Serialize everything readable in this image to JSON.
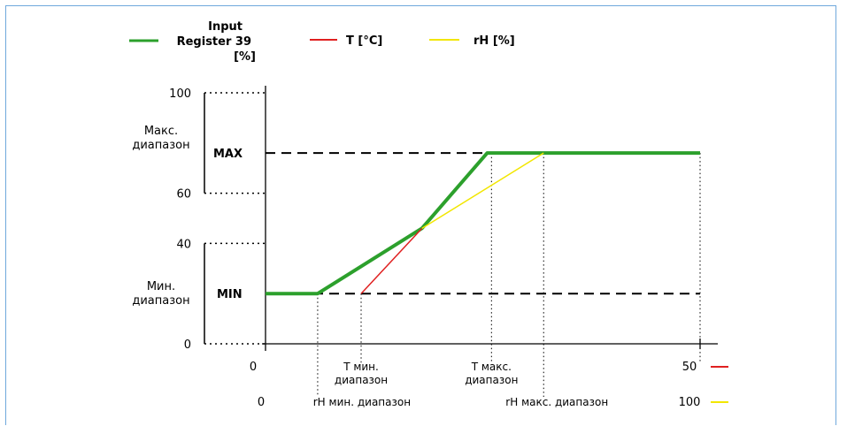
{
  "chart_data": {
    "type": "line",
    "ylabel_lines": [
      "Input",
      "Register 39",
      "[%]"
    ],
    "y_ticks": [
      {
        "value": 0,
        "label": "0"
      },
      {
        "value": 40,
        "label": "40"
      },
      {
        "value": 60,
        "label": "60"
      },
      {
        "value": 100,
        "label": "100"
      }
    ],
    "levels": {
      "max": {
        "value": 76,
        "label": "MAX"
      },
      "min": {
        "value": 20,
        "label": "MIN"
      }
    },
    "ranges": {
      "max": {
        "label_lines": [
          "Макс.",
          "диапазон"
        ],
        "from": 60,
        "to": 100
      },
      "min": {
        "label_lines": [
          "Мин.",
          "диапазон"
        ],
        "from": 0,
        "to": 40
      }
    },
    "x_axis_T": {
      "min": 0,
      "max": 50,
      "start_label": "0",
      "end_label": "50",
      "min_range": 11,
      "max_range": 26,
      "min_range_label": [
        "T мин.",
        "диапазон"
      ],
      "max_range_label": [
        "T макс.",
        "диапазон"
      ],
      "color": "#e02020"
    },
    "x_axis_rH": {
      "min": 0,
      "max": 100,
      "start_label": "0",
      "end_label": "100",
      "min_range": 12,
      "max_range": 64,
      "min_range_label": "rH мин. диапазон",
      "max_range_label": "rH макс. диапазон",
      "color": "#f2e600"
    },
    "series": [
      {
        "name": "Input Register 39 [%]",
        "color": "#2ca02c",
        "points": [
          [
            0,
            20
          ],
          [
            12,
            20
          ],
          [
            36,
            46
          ],
          [
            51,
            76
          ],
          [
            100,
            76
          ]
        ]
      },
      {
        "name": "T [°C]",
        "color": "#e02020",
        "points": [
          [
            22,
            20
          ],
          [
            36,
            46
          ]
        ]
      },
      {
        "name": "rH [%]",
        "color": "#f2e600",
        "points": [
          [
            36,
            46
          ],
          [
            64,
            76
          ]
        ]
      }
    ],
    "legend": [
      {
        "label": "T [°C]",
        "color": "#e02020"
      },
      {
        "label": "rH [%]",
        "color": "#f2e600"
      }
    ]
  }
}
